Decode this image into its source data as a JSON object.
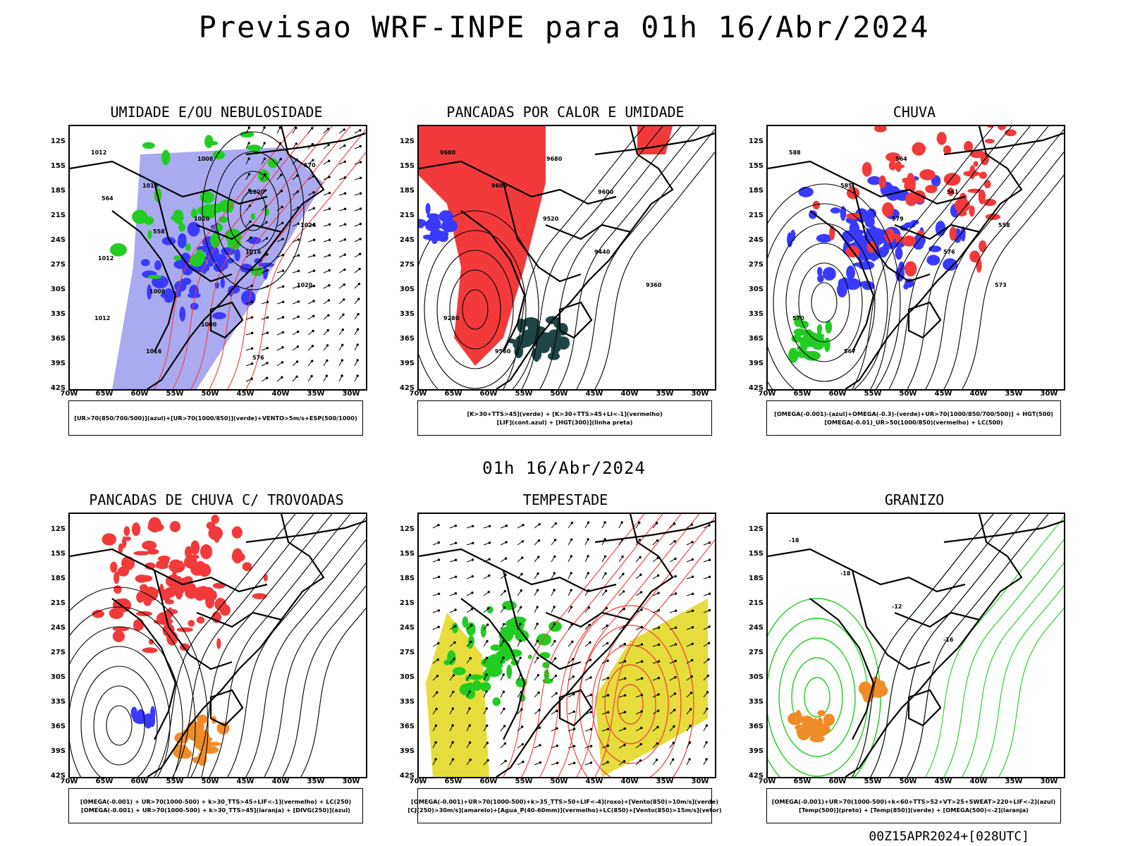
{
  "header": {
    "title": "Previsao WRF-INPE  para 01h 16/Abr/2024",
    "mid_date": "01h 16/Abr/2024",
    "run_stamp": "00Z15APR2024+[028UTC]"
  },
  "axes": {
    "lat_labels": [
      "12S",
      "15S",
      "18S",
      "21S",
      "24S",
      "27S",
      "30S",
      "33S",
      "36S",
      "39S",
      "42S"
    ],
    "lon_labels": [
      "70W",
      "65W",
      "60W",
      "55W",
      "50W",
      "45W",
      "40W",
      "35W",
      "30W"
    ]
  },
  "colors": {
    "red": "#f23a3a",
    "blue": "#3a3aff",
    "lightblue": "#aaaaf0",
    "green": "#22cc22",
    "yellow": "#e6dc3c",
    "orange": "#f08c28",
    "darkgreen": "#1e4646",
    "black": "#000000"
  },
  "panels": [
    {
      "title": "UMIDADE E/OU NEBULOSIDADE",
      "legend": [
        "[UR>70(850/700/500)](azul)+[UR>70(1000/850)](verde)+VENTO>5m/s+ESP(500/1000)"
      ],
      "contour_labels": [
        "1012",
        "1016",
        "1020",
        "1016",
        "1020",
        "1012",
        "1016",
        "1008",
        "1020",
        "1024",
        "1012",
        "1008",
        "1000",
        "576",
        "570",
        "564",
        "558"
      ]
    },
    {
      "title": "PANCADAS POR CALOR E UMIDADE",
      "legend": [
        "[K>30+TTS>45](verde) + [K>30+TTS>45+LI<-1](vermelho)",
        "[LIF](cont.azul) + [HGT(300)](linha preta)"
      ],
      "contour_labels": [
        "9680",
        "9600",
        "9520",
        "9440",
        "9360",
        "9280",
        "9560",
        "9680",
        "9600"
      ]
    },
    {
      "title": "CHUVA",
      "legend": [
        "[OMEGA(-0.001)-(azul)+OMEGA(-0.3)-(verde)+UR>70(1000/850/700/500)] + HGT(500)",
        "[OMEGA(-0.01)_UR>50(1000/850)(vermelho) + LC(500)"
      ],
      "contour_labels": [
        "588",
        "585",
        "579",
        "576",
        "573",
        "570",
        "567",
        "564",
        "561",
        "558"
      ]
    },
    {
      "title": "PANCADAS DE CHUVA C/ TROVOADAS",
      "legend": [
        "[OMEGA(-0.001) + UR>70(1000-500) + k>30_TTS>45+LIF<-1](vermelho) + LC(250)",
        "[OMEGA(-0.001) + UR>70(1000-500) + k>30_TTS>45](laranja) + [DIVG(250)](azul)"
      ],
      "contour_labels": []
    },
    {
      "title": "TEMPESTADE",
      "legend": [
        "[OMEGA(-0.001)+UR>70(1000-500)+k>35_TTS>50+LIF<-4](roxo)+[Vento(850)>10m/s](verde)",
        "[CJ(250)>30m/s](amarelo)+[Agua_P(40-60mm)](vermelho)+LC(850)+[Vento(850)>15m/s](vetor)"
      ],
      "contour_labels": []
    },
    {
      "title": "GRANIZO",
      "legend": [
        "[OMEGA(-0.001)+UR>70(1000-500)+k<60+TTS>52+VT>25+SWEAT>220+LIF<-2](azul)",
        "[Temp(500)](preto) + [Temp(850)](verde) + [OMEGA(500)<-2](laranja)"
      ],
      "contour_labels": [
        "-18",
        "-18",
        "-12",
        "-16"
      ]
    }
  ]
}
